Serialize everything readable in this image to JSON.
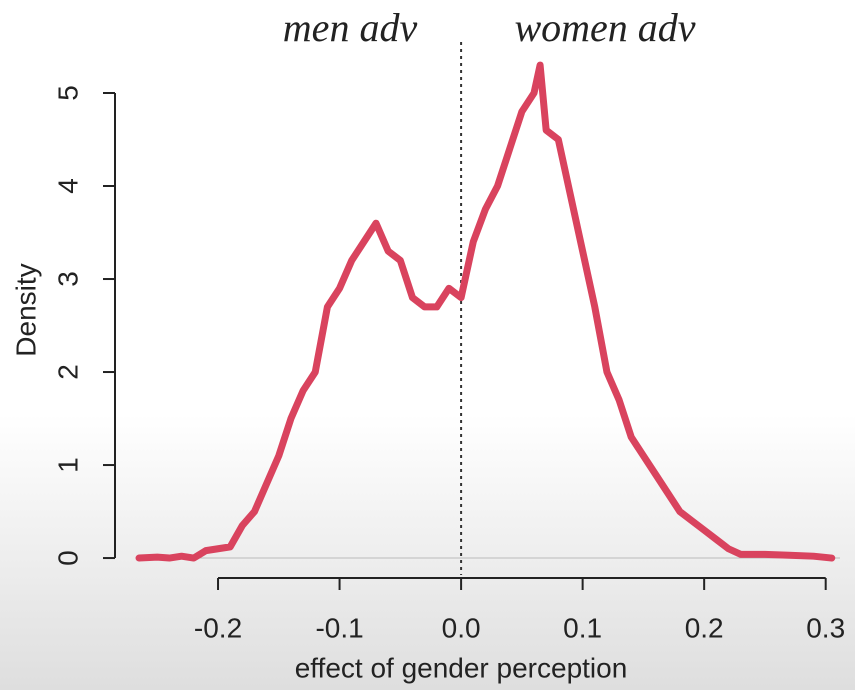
{
  "chart_data": {
    "type": "line",
    "annotations": [
      "men adv",
      "women adv"
    ],
    "xlabel": "effect of gender perception",
    "ylabel": "Density",
    "x": [
      -0.265,
      -0.25,
      -0.24,
      -0.23,
      -0.22,
      -0.21,
      -0.2,
      -0.19,
      -0.18,
      -0.17,
      -0.16,
      -0.15,
      -0.14,
      -0.13,
      -0.12,
      -0.11,
      -0.1,
      -0.09,
      -0.08,
      -0.07,
      -0.06,
      -0.05,
      -0.04,
      -0.03,
      -0.02,
      -0.01,
      0.0,
      0.01,
      0.02,
      0.03,
      0.04,
      0.05,
      0.06,
      0.065,
      0.07,
      0.08,
      0.09,
      0.1,
      0.11,
      0.12,
      0.13,
      0.14,
      0.15,
      0.16,
      0.17,
      0.18,
      0.19,
      0.2,
      0.21,
      0.22,
      0.23,
      0.25,
      0.27,
      0.29,
      0.305
    ],
    "series": [
      {
        "color": "#d9435e",
        "values": [
          0.0,
          0.01,
          0.0,
          0.02,
          0.0,
          0.08,
          0.1,
          0.12,
          0.35,
          0.5,
          0.8,
          1.1,
          1.5,
          1.8,
          2.0,
          2.7,
          2.9,
          3.2,
          3.4,
          3.6,
          3.3,
          3.2,
          2.8,
          2.7,
          2.7,
          2.9,
          2.8,
          3.4,
          3.75,
          4.0,
          4.4,
          4.8,
          5.0,
          5.3,
          4.6,
          4.5,
          3.9,
          3.3,
          2.7,
          2.0,
          1.7,
          1.3,
          1.1,
          0.9,
          0.7,
          0.5,
          0.4,
          0.3,
          0.2,
          0.1,
          0.04,
          0.04,
          0.03,
          0.02,
          0.0
        ]
      }
    ],
    "vline": 0,
    "xlim": [
      -0.3,
      0.32
    ],
    "ylim": [
      -0.15,
      5.5
    ],
    "xticks": [
      -0.2,
      -0.1,
      {
        "value": 0,
        "label": "0.0"
      },
      0.1,
      0.2,
      0.3
    ],
    "yticks": [
      0,
      1,
      2,
      3,
      4,
      5
    ]
  }
}
